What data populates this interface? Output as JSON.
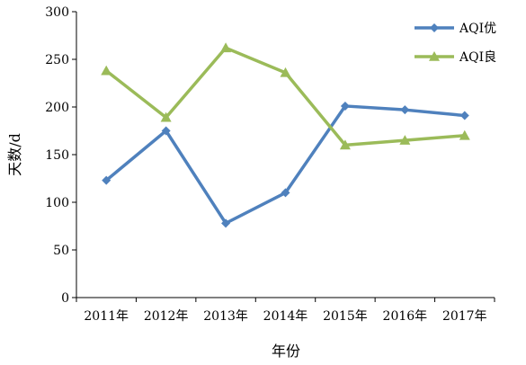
{
  "chart_data": {
    "type": "line",
    "categories": [
      "2011年",
      "2012年",
      "2013年",
      "2014年",
      "2015年",
      "2016年",
      "2017年"
    ],
    "series": [
      {
        "name": "AQI优",
        "values": [
          123,
          175,
          78,
          110,
          201,
          197,
          191
        ],
        "color": "#4f81bd",
        "marker": "diamond"
      },
      {
        "name": "AQI良",
        "values": [
          238,
          189,
          262,
          236,
          160,
          165,
          170
        ],
        "color": "#9bbb59",
        "marker": "triangle"
      }
    ],
    "title": "",
    "xlabel": "年份",
    "ylabel": "天数/d",
    "ylim": [
      0,
      300
    ],
    "yticks": [
      "0",
      "50",
      "100",
      "150",
      "200",
      "250",
      "300"
    ],
    "grid": false,
    "legend_position": "top-right"
  }
}
